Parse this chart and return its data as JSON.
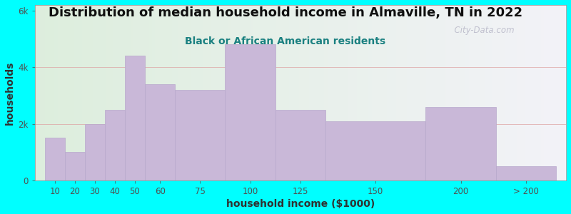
{
  "title": "Distribution of median household income in Almaville, TN in 2022",
  "subtitle": "Black or African American residents",
  "xlabel": "household income ($1000)",
  "ylabel": "households",
  "bar_labels": [
    "10",
    "20",
    "30",
    "40",
    "50",
    "60",
    "75",
    "100",
    "125",
    "150",
    "200",
    "> 200"
  ],
  "bar_values": [
    1500,
    1000,
    2000,
    2500,
    4400,
    3400,
    3200,
    4800,
    2500,
    2100,
    2600,
    500
  ],
  "bar_color": "#c9b8d8",
  "bar_edge_color": "#b8a8cc",
  "yticks": [
    0,
    2000,
    4000,
    6000
  ],
  "ytick_labels": [
    "0",
    "2k",
    "4k",
    "6k"
  ],
  "ylim": [
    0,
    6200
  ],
  "bg_color": "#00ffff",
  "title_fontsize": 13,
  "subtitle_fontsize": 10,
  "axis_label_fontsize": 10,
  "tick_fontsize": 8.5,
  "watermark_text": "  City-Data.com",
  "positions": [
    10,
    20,
    30,
    40,
    50,
    60,
    75,
    100,
    125,
    150,
    200,
    235
  ],
  "widths": [
    10,
    10,
    10,
    10,
    10,
    15,
    25,
    25,
    25,
    50,
    35,
    30
  ],
  "xlim": [
    5,
    270
  ]
}
